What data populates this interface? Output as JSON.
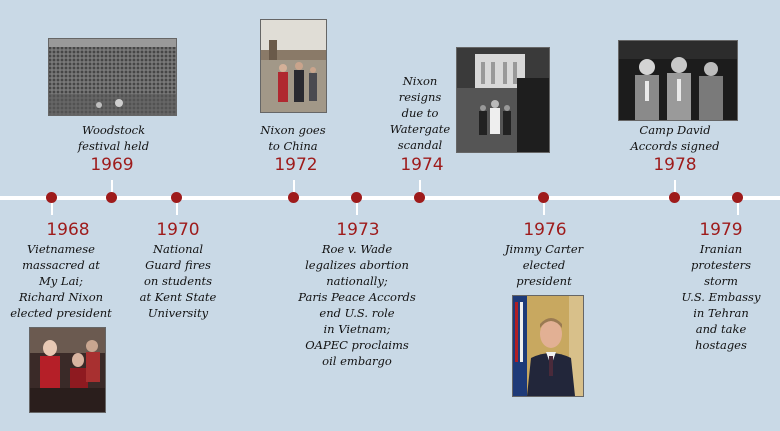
{
  "events": [
    {
      "year": "1968",
      "text": "Vietnamese massacred at My Lai; Richard Nixon elected president",
      "lines": [
        "Vietnamese",
        "massacred at",
        "My Lai;",
        "Richard Nixon",
        "elected president"
      ]
    },
    {
      "year": "1969",
      "text": "Woodstock festival held",
      "lines": [
        "Woodstock",
        "festival held"
      ]
    },
    {
      "year": "1970",
      "text": "National Guard fires on students at Kent State University",
      "lines": [
        "National",
        "Guard fires",
        "on students",
        "at Kent State",
        "University"
      ]
    },
    {
      "year": "1972",
      "text": "Nixon goes to China",
      "lines": [
        "Nixon goes",
        "to China"
      ]
    },
    {
      "year": "1973",
      "text": "Roe v. Wade legalizes abortion nationally; Paris Peace Accords end U.S. role in Vietnam; OAPEC proclaims oil embargo",
      "lines": [
        "Roe v. Wade",
        "legalizes abortion",
        "nationally;",
        "Paris Peace Accords",
        "end U.S. role",
        "in Vietnam;",
        "OAPEC proclaims",
        "oil embargo"
      ]
    },
    {
      "year": "1974",
      "text": "Nixon resigns due to Watergate scandal",
      "lines": [
        "Nixon",
        "resigns",
        "due to",
        "Watergate",
        "scandal"
      ]
    },
    {
      "year": "1976",
      "text": "Jimmy Carter elected president",
      "lines": [
        "Jimmy Carter",
        "elected",
        "president"
      ]
    },
    {
      "year": "1978",
      "text": "Camp David Accords signed",
      "lines": [
        "Camp David",
        "Accords signed"
      ]
    },
    {
      "year": "1979",
      "text": "Iranian protesters storm U.S. Embassy in Tehran and take hostages",
      "lines": [
        "Iranian",
        "protesters",
        "storm",
        "U.S. Embassy",
        "in Tehran",
        "and take",
        "hostages"
      ]
    }
  ],
  "colors": {
    "background": "#c9d9e6",
    "axis": "#ffffff",
    "marker": "#9e1b1b",
    "year_text": "#9e1b1b"
  },
  "photos": [
    "my-lai-photo",
    "woodstock-crowd-photo",
    "nixon-china-photo",
    "nixon-resignation-photo",
    "jimmy-carter-portrait",
    "camp-david-photo"
  ]
}
